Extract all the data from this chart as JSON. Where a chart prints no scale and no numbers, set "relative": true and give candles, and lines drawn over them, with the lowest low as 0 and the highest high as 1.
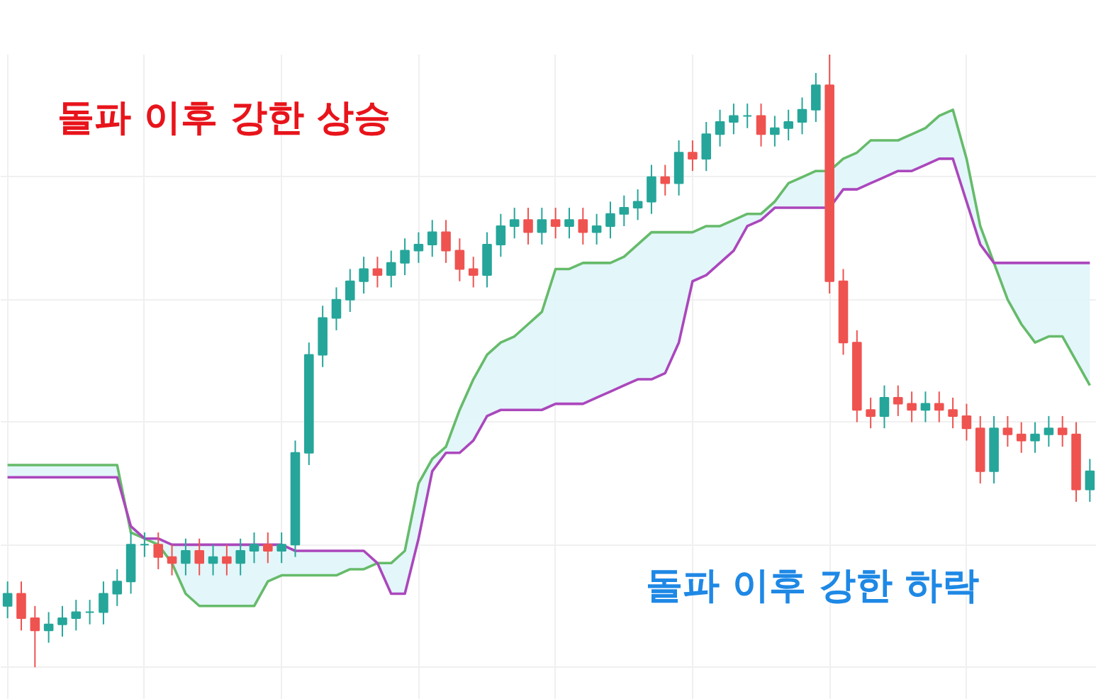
{
  "chart_data": {
    "type": "candlestick",
    "relative": true,
    "tick_labels": false,
    "grid": true,
    "annotations": [
      "돌파 이후 강한 상승",
      "돌파 이후 강한 하락"
    ],
    "categories": [
      null,
      null,
      null,
      null,
      null,
      null,
      null,
      null,
      null,
      null,
      null,
      null,
      null,
      null,
      null,
      null,
      null,
      null,
      null,
      null,
      null,
      null,
      null,
      null,
      null,
      null,
      null,
      null,
      null,
      null,
      null,
      null,
      null,
      null,
      null,
      null,
      null,
      null,
      null,
      null,
      null,
      null,
      null,
      null,
      null,
      null,
      null,
      null,
      null,
      null,
      null,
      null,
      null,
      null,
      null,
      null,
      null,
      null,
      null,
      null,
      null,
      null,
      null,
      null,
      null,
      null,
      null,
      null,
      null,
      null,
      null,
      null,
      null,
      null,
      null,
      null,
      null,
      null,
      null,
      null
    ],
    "ohlc": [
      [
        0.1,
        0.14,
        0.08,
        0.12
      ],
      [
        0.12,
        0.14,
        0.06,
        0.08
      ],
      [
        0.08,
        0.1,
        0.0,
        0.06
      ],
      [
        0.06,
        0.09,
        0.04,
        0.07
      ],
      [
        0.07,
        0.1,
        0.05,
        0.08
      ],
      [
        0.08,
        0.11,
        0.06,
        0.09
      ],
      [
        0.09,
        0.11,
        0.07,
        0.09
      ],
      [
        0.09,
        0.14,
        0.07,
        0.12
      ],
      [
        0.12,
        0.16,
        0.1,
        0.14
      ],
      [
        0.14,
        0.22,
        0.12,
        0.2
      ],
      [
        0.2,
        0.22,
        0.18,
        0.2
      ],
      [
        0.2,
        0.22,
        0.16,
        0.18
      ],
      [
        0.18,
        0.2,
        0.15,
        0.17
      ],
      [
        0.17,
        0.21,
        0.15,
        0.19
      ],
      [
        0.19,
        0.21,
        0.15,
        0.17
      ],
      [
        0.17,
        0.2,
        0.15,
        0.18
      ],
      [
        0.18,
        0.2,
        0.15,
        0.17
      ],
      [
        0.17,
        0.21,
        0.15,
        0.19
      ],
      [
        0.19,
        0.22,
        0.17,
        0.2
      ],
      [
        0.2,
        0.22,
        0.17,
        0.19
      ],
      [
        0.19,
        0.22,
        0.17,
        0.2
      ],
      [
        0.2,
        0.37,
        0.18,
        0.35
      ],
      [
        0.35,
        0.53,
        0.33,
        0.51
      ],
      [
        0.51,
        0.59,
        0.49,
        0.57
      ],
      [
        0.57,
        0.62,
        0.55,
        0.6
      ],
      [
        0.6,
        0.65,
        0.58,
        0.63
      ],
      [
        0.63,
        0.67,
        0.61,
        0.65
      ],
      [
        0.65,
        0.67,
        0.62,
        0.64
      ],
      [
        0.64,
        0.68,
        0.62,
        0.66
      ],
      [
        0.66,
        0.7,
        0.64,
        0.68
      ],
      [
        0.68,
        0.71,
        0.66,
        0.69
      ],
      [
        0.69,
        0.73,
        0.67,
        0.71
      ],
      [
        0.71,
        0.73,
        0.66,
        0.68
      ],
      [
        0.68,
        0.7,
        0.63,
        0.65
      ],
      [
        0.65,
        0.67,
        0.62,
        0.64
      ],
      [
        0.64,
        0.71,
        0.62,
        0.69
      ],
      [
        0.69,
        0.74,
        0.67,
        0.72
      ],
      [
        0.72,
        0.75,
        0.7,
        0.73
      ],
      [
        0.73,
        0.75,
        0.69,
        0.71
      ],
      [
        0.71,
        0.75,
        0.69,
        0.73
      ],
      [
        0.73,
        0.75,
        0.7,
        0.72
      ],
      [
        0.72,
        0.75,
        0.7,
        0.73
      ],
      [
        0.73,
        0.75,
        0.69,
        0.71
      ],
      [
        0.71,
        0.74,
        0.69,
        0.72
      ],
      [
        0.72,
        0.76,
        0.7,
        0.74
      ],
      [
        0.74,
        0.77,
        0.72,
        0.75
      ],
      [
        0.75,
        0.78,
        0.73,
        0.76
      ],
      [
        0.76,
        0.82,
        0.74,
        0.8
      ],
      [
        0.8,
        0.82,
        0.77,
        0.79
      ],
      [
        0.79,
        0.86,
        0.77,
        0.84
      ],
      [
        0.84,
        0.86,
        0.81,
        0.83
      ],
      [
        0.83,
        0.89,
        0.81,
        0.87
      ],
      [
        0.87,
        0.91,
        0.85,
        0.89
      ],
      [
        0.89,
        0.92,
        0.87,
        0.9
      ],
      [
        0.9,
        0.92,
        0.88,
        0.9
      ],
      [
        0.9,
        0.92,
        0.85,
        0.87
      ],
      [
        0.87,
        0.9,
        0.85,
        0.88
      ],
      [
        0.88,
        0.91,
        0.86,
        0.89
      ],
      [
        0.89,
        0.93,
        0.87,
        0.91
      ],
      [
        0.91,
        0.97,
        0.89,
        0.95
      ],
      [
        0.95,
        1.0,
        0.61,
        0.63
      ],
      [
        0.63,
        0.65,
        0.51,
        0.53
      ],
      [
        0.53,
        0.55,
        0.4,
        0.42
      ],
      [
        0.42,
        0.44,
        0.39,
        0.41
      ],
      [
        0.41,
        0.46,
        0.39,
        0.44
      ],
      [
        0.44,
        0.46,
        0.41,
        0.43
      ],
      [
        0.43,
        0.45,
        0.4,
        0.42
      ],
      [
        0.42,
        0.45,
        0.4,
        0.43
      ],
      [
        0.43,
        0.45,
        0.4,
        0.42
      ],
      [
        0.42,
        0.44,
        0.39,
        0.41
      ],
      [
        0.41,
        0.43,
        0.37,
        0.39
      ],
      [
        0.39,
        0.41,
        0.3,
        0.32
      ],
      [
        0.32,
        0.41,
        0.3,
        0.39
      ],
      [
        0.39,
        0.41,
        0.36,
        0.38
      ],
      [
        0.38,
        0.4,
        0.35,
        0.37
      ],
      [
        0.37,
        0.4,
        0.35,
        0.38
      ],
      [
        0.38,
        0.41,
        0.36,
        0.39
      ],
      [
        0.39,
        0.41,
        0.36,
        0.38
      ],
      [
        0.38,
        0.4,
        0.27,
        0.29
      ],
      [
        0.29,
        0.34,
        0.27,
        0.32
      ]
    ],
    "series": [
      {
        "type": "line",
        "color": "#66bb6a",
        "values": [
          0.33,
          0.33,
          0.33,
          0.33,
          0.33,
          0.33,
          0.33,
          0.33,
          0.33,
          0.22,
          0.21,
          0.2,
          0.17,
          0.12,
          0.1,
          0.1,
          0.1,
          0.1,
          0.1,
          0.14,
          0.15,
          0.15,
          0.15,
          0.15,
          0.15,
          0.16,
          0.16,
          0.17,
          0.17,
          0.19,
          0.3,
          0.34,
          0.36,
          0.42,
          0.47,
          0.51,
          0.53,
          0.54,
          0.56,
          0.58,
          0.65,
          0.65,
          0.66,
          0.66,
          0.66,
          0.67,
          0.69,
          0.71,
          0.71,
          0.71,
          0.71,
          0.72,
          0.72,
          0.73,
          0.74,
          0.74,
          0.76,
          0.79,
          0.8,
          0.81,
          0.81,
          0.83,
          0.84,
          0.86,
          0.86,
          0.86,
          0.87,
          0.88,
          0.9,
          0.91,
          0.83,
          0.72,
          0.66,
          0.6,
          0.56,
          0.53,
          0.54,
          0.54,
          0.5,
          0.46
        ],
        "upper": [
          0.33,
          0.33,
          0.33,
          0.33,
          0.33,
          0.33,
          0.33,
          0.33,
          0.33,
          0.22,
          0.21,
          0.2,
          0.17,
          0.12,
          0.1,
          0.1,
          0.1,
          0.1,
          0.1,
          0.14,
          0.15,
          0.15,
          0.15,
          0.15,
          0.15,
          0.16,
          0.16,
          0.17,
          0.17,
          0.19,
          0.3,
          0.34,
          0.36,
          0.42,
          0.47,
          0.51,
          0.53,
          0.54,
          0.56,
          0.58,
          0.65,
          0.65,
          0.66,
          0.66,
          0.66,
          0.67,
          0.69,
          0.71,
          0.71,
          0.71,
          0.71,
          0.72,
          0.72,
          0.73,
          0.74,
          0.74,
          0.76,
          0.79,
          0.8,
          0.81,
          0.81,
          0.83,
          0.84,
          0.86,
          0.86,
          0.86,
          0.87,
          0.88,
          0.9,
          0.91,
          0.83,
          0.72,
          0.66,
          0.6,
          0.56,
          0.53,
          0.54,
          0.54,
          0.5,
          0.46
        ],
        "lower": [
          0.31,
          0.31,
          0.31,
          0.31,
          0.31,
          0.31,
          0.31,
          0.31,
          0.31,
          0.23,
          0.21,
          0.21,
          0.2,
          0.2,
          0.2,
          0.2,
          0.2,
          0.2,
          0.2,
          0.2,
          0.2,
          0.19,
          0.19,
          0.19,
          0.19,
          0.19,
          0.19,
          0.17,
          0.12,
          0.12,
          0.21,
          0.32,
          0.35,
          0.35,
          0.37,
          0.41,
          0.42,
          0.42,
          0.42,
          0.42,
          0.43,
          0.43,
          0.43,
          0.44,
          0.45,
          0.46,
          0.47,
          0.47,
          0.48,
          0.53,
          0.63,
          0.64,
          0.66,
          0.68,
          0.72,
          0.73,
          0.75,
          0.75,
          0.75,
          0.75,
          0.75,
          0.78,
          0.78,
          0.79,
          0.8,
          0.81,
          0.81,
          0.82,
          0.83,
          0.83,
          0.76,
          0.69,
          0.66,
          0.66,
          0.66,
          0.66,
          0.66,
          0.66,
          0.66,
          0.66
        ]
      },
      {
        "type": "line",
        "color": "#ab47bc",
        "values": [
          0.31,
          0.31,
          0.31,
          0.31,
          0.31,
          0.31,
          0.31,
          0.31,
          0.31,
          0.23,
          0.21,
          0.21,
          0.2,
          0.2,
          0.2,
          0.2,
          0.2,
          0.2,
          0.2,
          0.2,
          0.2,
          0.19,
          0.19,
          0.19,
          0.19,
          0.19,
          0.19,
          0.17,
          0.12,
          0.12,
          0.21,
          0.32,
          0.35,
          0.35,
          0.37,
          0.41,
          0.42,
          0.42,
          0.42,
          0.42,
          0.43,
          0.43,
          0.43,
          0.44,
          0.45,
          0.46,
          0.47,
          0.47,
          0.48,
          0.53,
          0.63,
          0.64,
          0.66,
          0.68,
          0.72,
          0.73,
          0.75,
          0.75,
          0.75,
          0.75,
          0.75,
          0.78,
          0.78,
          0.79,
          0.8,
          0.81,
          0.81,
          0.82,
          0.83,
          0.83,
          0.76,
          0.69,
          0.66,
          0.66,
          0.66,
          0.66,
          0.66,
          0.66,
          0.66,
          0.66
        ]
      }
    ]
  }
}
